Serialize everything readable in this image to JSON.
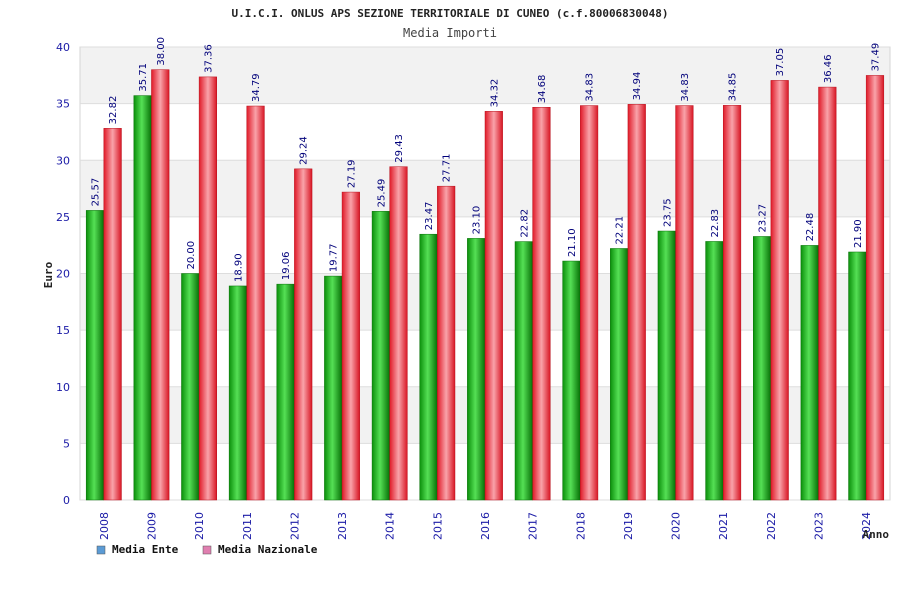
{
  "chart_data": {
    "type": "bar",
    "title": "U.I.C.I. ONLUS APS SEZIONE TERRITORIALE DI CUNEO (c.f.80006830048)",
    "subtitle": "Media Importi",
    "xlabel": "Anno",
    "ylabel": "Euro",
    "ylim": [
      0,
      40
    ],
    "yticks": [
      "0",
      "5",
      "10",
      "15",
      "20",
      "25",
      "30",
      "35",
      "40"
    ],
    "grid": true,
    "legend_position": "bottom-left",
    "categories": [
      "2008",
      "2009",
      "2010",
      "2011",
      "2012",
      "2013",
      "2014",
      "2015",
      "2016",
      "2017",
      "2018",
      "2019",
      "2020",
      "2021",
      "2022",
      "2023",
      "2024"
    ],
    "series": [
      {
        "name": "Media Ente",
        "color": "#0a9a0a",
        "legend_color": "#5b9bd5",
        "values": [
          25.57,
          35.71,
          20.0,
          18.9,
          19.06,
          19.77,
          25.49,
          23.47,
          23.1,
          22.82,
          21.1,
          22.21,
          23.75,
          22.83,
          23.27,
          22.48,
          21.9
        ],
        "labels": [
          "25.57",
          "35.71",
          "20.00",
          "18.90",
          "19.06",
          "19.77",
          "25.49",
          "23.47",
          "23.10",
          "22.82",
          "21.10",
          "22.21",
          "23.75",
          "22.83",
          "23.27",
          "22.48",
          "21.90"
        ]
      },
      {
        "name": "Media Nazionale",
        "color": "#e8202e",
        "legend_color": "#e07fb0",
        "values": [
          32.82,
          38.0,
          37.36,
          34.79,
          29.24,
          27.19,
          29.43,
          27.71,
          34.32,
          34.68,
          34.83,
          34.94,
          34.83,
          34.85,
          37.05,
          36.46,
          37.49
        ],
        "labels": [
          "32.82",
          "38.00",
          "37.36",
          "34.79",
          "29.24",
          "27.19",
          "29.43",
          "27.71",
          "34.32",
          "34.68",
          "34.83",
          "34.94",
          "34.83",
          "34.85",
          "37.05",
          "36.46",
          "37.49"
        ]
      }
    ]
  }
}
